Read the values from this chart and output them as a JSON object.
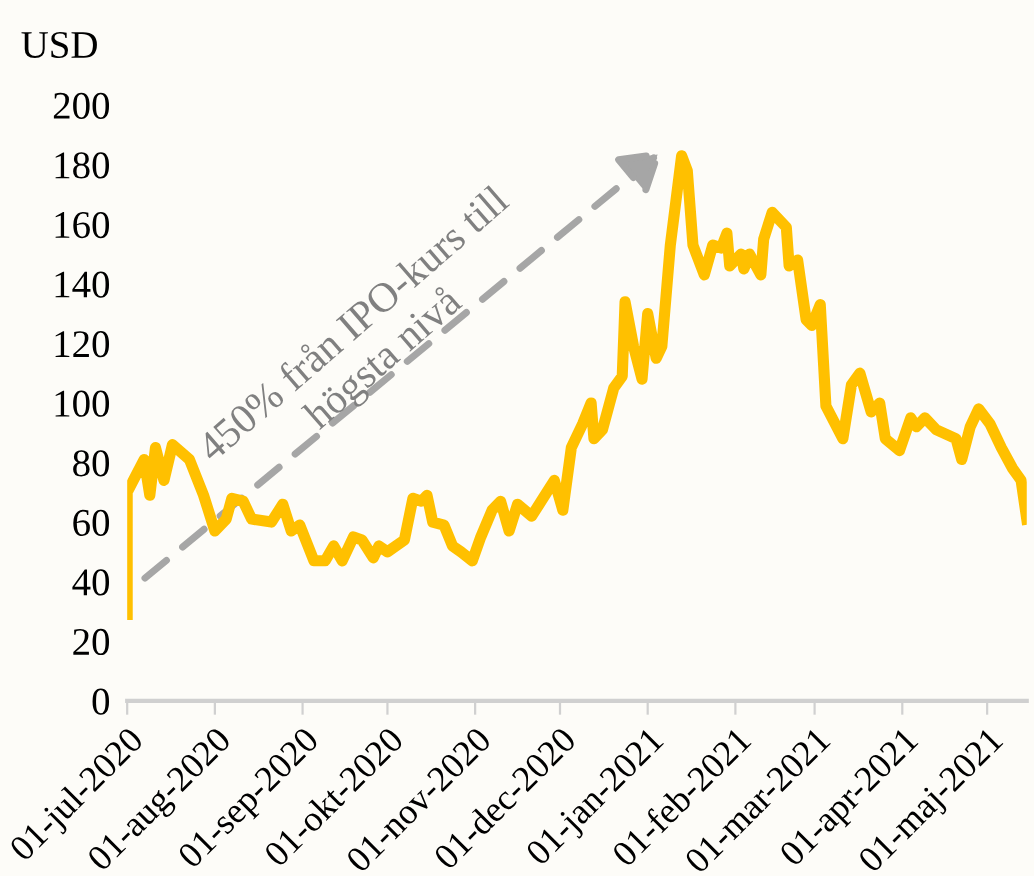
{
  "chart_data": {
    "type": "line",
    "ylabel": "USD",
    "annotations": [
      "450% från IPO-kurs till\nhögsta nivå"
    ],
    "x": [
      "2020-07-01",
      "2020-07-01",
      "2020-07-07",
      "2020-07-09",
      "2020-07-11",
      "2020-07-14",
      "2020-07-17",
      "2020-07-23",
      "2020-07-28",
      "2020-08-01",
      "2020-08-05",
      "2020-08-07",
      "2020-08-11",
      "2020-08-14",
      "2020-08-21",
      "2020-08-25",
      "2020-08-28",
      "2020-08-31",
      "2020-09-05",
      "2020-09-09",
      "2020-09-12",
      "2020-09-15",
      "2020-09-19",
      "2020-09-22",
      "2020-09-26",
      "2020-09-28",
      "2020-10-01",
      "2020-10-07",
      "2020-10-10",
      "2020-10-13",
      "2020-10-15",
      "2020-10-17",
      "2020-10-21",
      "2020-10-24",
      "2020-10-27",
      "2020-10-31",
      "2020-11-03",
      "2020-11-07",
      "2020-11-10",
      "2020-11-13",
      "2020-11-16",
      "2020-11-21",
      "2020-11-25",
      "2020-11-29",
      "2020-12-02",
      "2020-12-05",
      "2020-12-09",
      "2020-12-12",
      "2020-12-13",
      "2020-12-16",
      "2020-12-20",
      "2020-12-23",
      "2020-12-24",
      "2020-12-27",
      "2020-12-30",
      "2021-01-01",
      "2021-01-04",
      "2021-01-06",
      "2021-01-09",
      "2021-01-13",
      "2021-01-15",
      "2021-01-17",
      "2021-01-21",
      "2021-01-24",
      "2021-01-27",
      "2021-01-29",
      "2021-01-30",
      "2021-02-03",
      "2021-02-04",
      "2021-02-06",
      "2021-02-10",
      "2021-02-11",
      "2021-02-14",
      "2021-02-19",
      "2021-02-20",
      "2021-02-23",
      "2021-02-26",
      "2021-02-28",
      "2021-03-03",
      "2021-03-05",
      "2021-03-11",
      "2021-03-14",
      "2021-03-17",
      "2021-03-21",
      "2021-03-24",
      "2021-03-26",
      "2021-03-31",
      "2021-04-04",
      "2021-04-06",
      "2021-04-09",
      "2021-04-13",
      "2021-04-20",
      "2021-04-22",
      "2021-04-25",
      "2021-04-28",
      "2021-05-02",
      "2021-05-06",
      "2021-05-10",
      "2021-05-13",
      "2021-05-15"
    ],
    "series": [
      {
        "color": "#ffc000",
        "values": [
          29,
          70,
          81,
          69,
          85,
          74,
          86,
          81,
          69,
          57,
          61,
          68,
          67,
          61,
          60,
          66,
          57,
          59,
          47,
          47,
          52,
          47,
          55,
          54,
          48,
          52,
          50,
          54,
          68,
          67,
          69,
          60,
          59,
          52,
          50,
          47,
          55,
          64,
          67,
          57,
          66,
          62,
          68,
          74,
          64,
          85,
          93,
          100,
          88,
          91,
          105,
          109,
          134,
          119,
          108,
          130,
          115,
          119,
          153,
          183,
          178,
          153,
          143,
          153,
          152,
          157,
          146,
          150,
          145,
          150,
          143,
          155,
          164,
          159,
          146,
          148,
          128,
          126,
          133,
          99,
          88,
          106,
          110,
          97,
          100,
          88,
          84,
          95,
          92,
          95,
          91,
          88,
          81,
          92,
          98,
          93,
          85,
          78,
          74,
          61
        ]
      }
    ],
    "xlim": [
      "2020-07-01",
      "2021-05-15"
    ],
    "xticks": [
      {
        "value": "2020-07-01",
        "label": "01-jul-2020"
      },
      {
        "value": "2020-08-01",
        "label": "01-aug-2020"
      },
      {
        "value": "2020-09-01",
        "label": "01-sep-2020"
      },
      {
        "value": "2020-10-01",
        "label": "01-okt-2020"
      },
      {
        "value": "2020-11-01",
        "label": "01-nov-2020"
      },
      {
        "value": "2020-12-01",
        "label": "01-dec-2020"
      },
      {
        "value": "2021-01-01",
        "label": "01-jan-2021"
      },
      {
        "value": "2021-02-01",
        "label": "01-feb-2021"
      },
      {
        "value": "2021-03-01",
        "label": "01-mar-2021"
      },
      {
        "value": "2021-04-01",
        "label": "01-apr-2021"
      },
      {
        "value": "2021-05-01",
        "label": "01-maj-2021"
      }
    ],
    "ylim": [
      0,
      200
    ],
    "yticks": [
      0,
      20,
      40,
      60,
      80,
      100,
      120,
      140,
      160,
      180,
      200
    ],
    "grid": false,
    "legend": false,
    "marker": "none",
    "line_style": "solid"
  }
}
